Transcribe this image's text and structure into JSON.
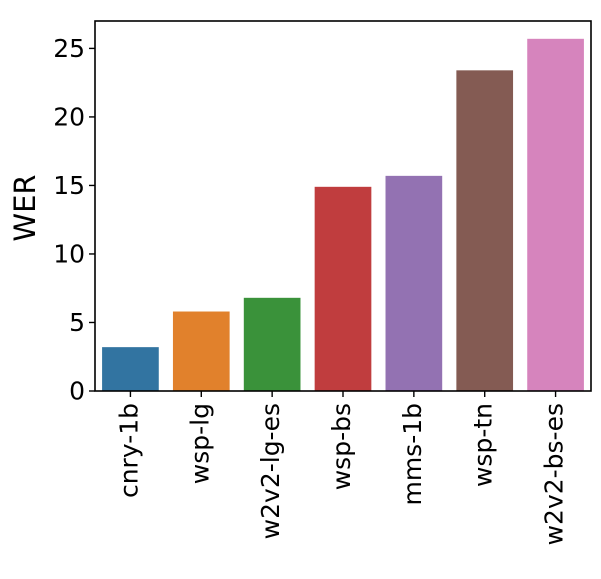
{
  "chart_data": {
    "type": "bar",
    "title": "",
    "xlabel": "",
    "ylabel": "WER",
    "categories": [
      "cnry-1b",
      "wsp-lg",
      "w2v2-lg-es",
      "wsp-bs",
      "mms-1b",
      "wsp-tn",
      "w2v2-bs-es"
    ],
    "values": [
      3.2,
      5.8,
      6.8,
      14.9,
      15.7,
      23.4,
      25.7
    ],
    "colors": [
      "#3274a1",
      "#e1812c",
      "#3a923a",
      "#c03d3e",
      "#9372b2",
      "#845b53",
      "#d684bd"
    ],
    "ylim": [
      0,
      27
    ],
    "yticks": [
      0,
      5,
      10,
      15,
      20,
      25
    ],
    "grid": false,
    "legend": "none"
  }
}
